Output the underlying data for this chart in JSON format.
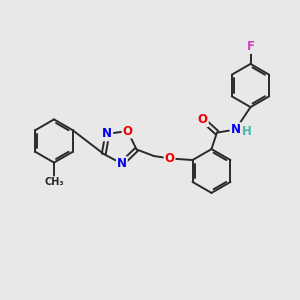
{
  "background_color": "#e8e8e8",
  "bond_color": "#2a2a2a",
  "atom_colors": {
    "N": "#0000ee",
    "O": "#ee0000",
    "F": "#cc44bb",
    "H": "#44bbaa",
    "C": "#2a2a2a"
  },
  "font_size": 8.5
}
